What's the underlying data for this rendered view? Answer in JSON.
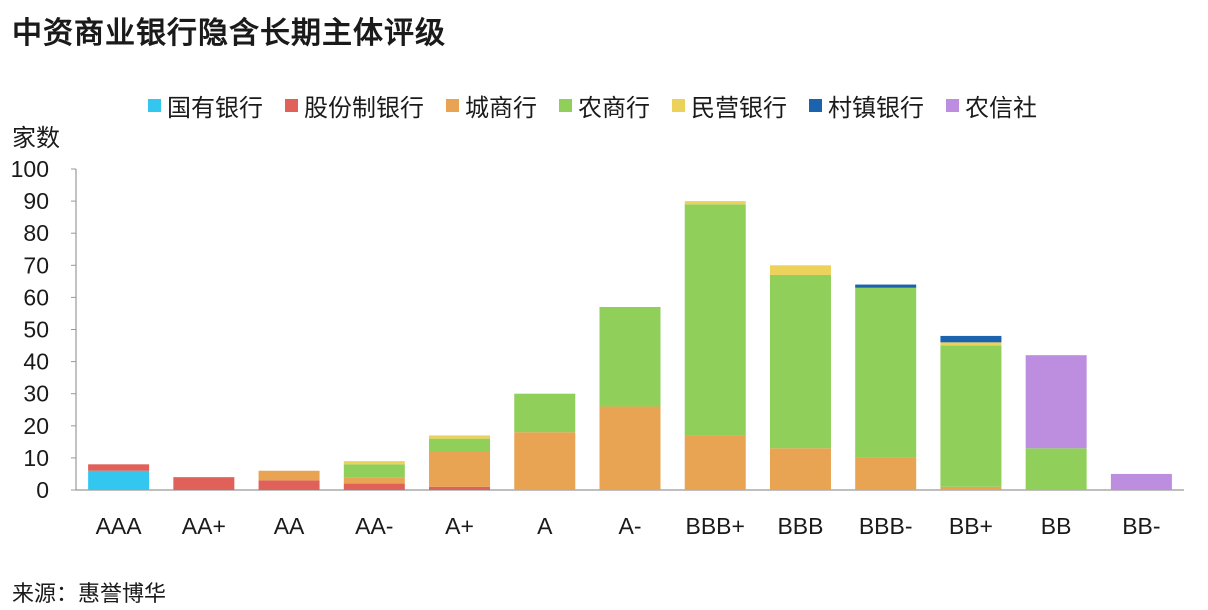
{
  "chart_data": {
    "type": "bar",
    "stacked": true,
    "title": "中资商业银行隐含长期主体评级",
    "ylabel": "家数",
    "xlabel": "",
    "ylim": [
      0,
      100
    ],
    "yticks": [
      0,
      10,
      20,
      30,
      40,
      50,
      60,
      70,
      80,
      90,
      100
    ],
    "grid": false,
    "legend_position": "top",
    "categories": [
      "AAA",
      "AA+",
      "AA",
      "AA-",
      "A+",
      "A",
      "A-",
      "BBB+",
      "BBB",
      "BBB-",
      "BB+",
      "BB",
      "BB-"
    ],
    "series": [
      {
        "name": "国有银行",
        "color": "#33c7f0",
        "values": [
          6,
          0,
          0,
          0,
          0,
          0,
          0,
          0,
          0,
          0,
          0,
          0,
          0
        ]
      },
      {
        "name": "股份制银行",
        "color": "#e0605a",
        "values": [
          2,
          4,
          3,
          2,
          1,
          0,
          0,
          0,
          0,
          0,
          0,
          0,
          0
        ]
      },
      {
        "name": "城商行",
        "color": "#e8a452",
        "values": [
          0,
          0,
          3,
          2,
          11,
          18,
          26,
          17,
          13,
          10,
          1,
          0,
          0
        ]
      },
      {
        "name": "农商行",
        "color": "#8fcf5a",
        "values": [
          0,
          0,
          0,
          4,
          4,
          12,
          31,
          72,
          54,
          53,
          44,
          13,
          0
        ]
      },
      {
        "name": "民营银行",
        "color": "#ecd15a",
        "values": [
          0,
          0,
          0,
          1,
          1,
          0,
          0,
          1,
          3,
          0,
          1,
          0,
          0
        ]
      },
      {
        "name": "村镇银行",
        "color": "#1b63ad",
        "values": [
          0,
          0,
          0,
          0,
          0,
          0,
          0,
          0,
          0,
          1,
          2,
          0,
          0
        ]
      },
      {
        "name": "农信社",
        "color": "#bd8ee0",
        "values": [
          0,
          0,
          0,
          0,
          0,
          0,
          0,
          0,
          0,
          0,
          0,
          29,
          5
        ]
      }
    ]
  },
  "source": "来源：惠誉博华"
}
